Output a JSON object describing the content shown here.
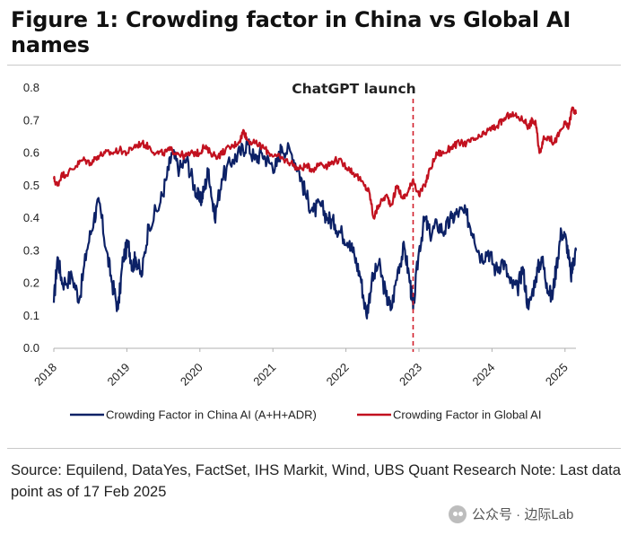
{
  "figure": {
    "title": "Figure 1: Crowding factor in China vs Global AI names"
  },
  "chart_data": {
    "type": "line",
    "title": "Figure 1: Crowding factor in China vs Global AI names",
    "xlabel": "",
    "ylabel": "",
    "xlim": [
      2018.0,
      2025.15
    ],
    "ylim": [
      0.0,
      0.8
    ],
    "y_ticks": [
      "0.0",
      "0.1",
      "0.2",
      "0.3",
      "0.4",
      "0.5",
      "0.6",
      "0.7",
      "0.8"
    ],
    "x_ticks": [
      "2018",
      "2019",
      "2020",
      "2021",
      "2022",
      "2023",
      "2024",
      "2025"
    ],
    "grid": false,
    "legend_position": "bottom",
    "annotation": {
      "label": "ChatGPT launch",
      "x": 2022.92,
      "style": "dashed",
      "color": "#d21f2b"
    },
    "series": [
      {
        "name": "Crowding Factor in China AI (A+H+ADR)",
        "color": "#0c2166",
        "points": [
          [
            2018.0,
            0.14
          ],
          [
            2018.05,
            0.28
          ],
          [
            2018.12,
            0.2
          ],
          [
            2018.25,
            0.22
          ],
          [
            2018.35,
            0.15
          ],
          [
            2018.45,
            0.3
          ],
          [
            2018.55,
            0.4
          ],
          [
            2018.62,
            0.45
          ],
          [
            2018.72,
            0.3
          ],
          [
            2018.8,
            0.2
          ],
          [
            2018.88,
            0.12
          ],
          [
            2018.95,
            0.28
          ],
          [
            2019.02,
            0.32
          ],
          [
            2019.08,
            0.25
          ],
          [
            2019.12,
            0.28
          ],
          [
            2019.2,
            0.22
          ],
          [
            2019.3,
            0.38
          ],
          [
            2019.45,
            0.44
          ],
          [
            2019.55,
            0.53
          ],
          [
            2019.62,
            0.6
          ],
          [
            2019.72,
            0.55
          ],
          [
            2019.82,
            0.58
          ],
          [
            2019.92,
            0.5
          ],
          [
            2020.0,
            0.45
          ],
          [
            2020.05,
            0.48
          ],
          [
            2020.12,
            0.55
          ],
          [
            2020.2,
            0.4
          ],
          [
            2020.3,
            0.52
          ],
          [
            2020.45,
            0.58
          ],
          [
            2020.55,
            0.6
          ],
          [
            2020.65,
            0.63
          ],
          [
            2020.75,
            0.58
          ],
          [
            2020.85,
            0.6
          ],
          [
            2020.95,
            0.57
          ],
          [
            2021.05,
            0.56
          ],
          [
            2021.12,
            0.62
          ],
          [
            2021.25,
            0.6
          ],
          [
            2021.35,
            0.55
          ],
          [
            2021.45,
            0.47
          ],
          [
            2021.55,
            0.42
          ],
          [
            2021.65,
            0.44
          ],
          [
            2021.75,
            0.4
          ],
          [
            2021.85,
            0.38
          ],
          [
            2021.95,
            0.35
          ],
          [
            2022.05,
            0.33
          ],
          [
            2022.12,
            0.28
          ],
          [
            2022.2,
            0.22
          ],
          [
            2022.28,
            0.1
          ],
          [
            2022.35,
            0.2
          ],
          [
            2022.45,
            0.26
          ],
          [
            2022.55,
            0.16
          ],
          [
            2022.62,
            0.12
          ],
          [
            2022.72,
            0.25
          ],
          [
            2022.8,
            0.31
          ],
          [
            2022.88,
            0.2
          ],
          [
            2022.92,
            0.12
          ],
          [
            2023.0,
            0.3
          ],
          [
            2023.08,
            0.4
          ],
          [
            2023.15,
            0.35
          ],
          [
            2023.25,
            0.38
          ],
          [
            2023.35,
            0.36
          ],
          [
            2023.45,
            0.4
          ],
          [
            2023.55,
            0.42
          ],
          [
            2023.65,
            0.41
          ],
          [
            2023.75,
            0.35
          ],
          [
            2023.85,
            0.28
          ],
          [
            2023.95,
            0.3
          ],
          [
            2024.05,
            0.24
          ],
          [
            2024.15,
            0.27
          ],
          [
            2024.25,
            0.2
          ],
          [
            2024.35,
            0.18
          ],
          [
            2024.42,
            0.25
          ],
          [
            2024.5,
            0.12
          ],
          [
            2024.6,
            0.22
          ],
          [
            2024.68,
            0.28
          ],
          [
            2024.75,
            0.2
          ],
          [
            2024.82,
            0.15
          ],
          [
            2024.88,
            0.25
          ],
          [
            2024.95,
            0.36
          ],
          [
            2025.02,
            0.33
          ],
          [
            2025.08,
            0.22
          ],
          [
            2025.12,
            0.27
          ],
          [
            2025.15,
            0.3
          ]
        ]
      },
      {
        "name": "Crowding Factor in Global AI",
        "color": "#c2111f",
        "points": [
          [
            2018.0,
            0.52
          ],
          [
            2018.05,
            0.5
          ],
          [
            2018.1,
            0.53
          ],
          [
            2018.2,
            0.54
          ],
          [
            2018.3,
            0.56
          ],
          [
            2018.4,
            0.58
          ],
          [
            2018.5,
            0.57
          ],
          [
            2018.6,
            0.59
          ],
          [
            2018.7,
            0.6
          ],
          [
            2018.8,
            0.6
          ],
          [
            2018.9,
            0.61
          ],
          [
            2019.0,
            0.6
          ],
          [
            2019.1,
            0.62
          ],
          [
            2019.2,
            0.63
          ],
          [
            2019.3,
            0.62
          ],
          [
            2019.4,
            0.6
          ],
          [
            2019.5,
            0.6
          ],
          [
            2019.6,
            0.61
          ],
          [
            2019.7,
            0.6
          ],
          [
            2019.8,
            0.59
          ],
          [
            2019.9,
            0.6
          ],
          [
            2020.0,
            0.6
          ],
          [
            2020.05,
            0.62
          ],
          [
            2020.15,
            0.6
          ],
          [
            2020.25,
            0.59
          ],
          [
            2020.35,
            0.61
          ],
          [
            2020.45,
            0.62
          ],
          [
            2020.55,
            0.64
          ],
          [
            2020.6,
            0.67
          ],
          [
            2020.65,
            0.64
          ],
          [
            2020.75,
            0.63
          ],
          [
            2020.85,
            0.62
          ],
          [
            2020.95,
            0.6
          ],
          [
            2021.05,
            0.59
          ],
          [
            2021.15,
            0.58
          ],
          [
            2021.25,
            0.57
          ],
          [
            2021.35,
            0.55
          ],
          [
            2021.45,
            0.56
          ],
          [
            2021.55,
            0.55
          ],
          [
            2021.65,
            0.57
          ],
          [
            2021.75,
            0.56
          ],
          [
            2021.85,
            0.58
          ],
          [
            2021.95,
            0.57
          ],
          [
            2022.05,
            0.55
          ],
          [
            2022.15,
            0.53
          ],
          [
            2022.25,
            0.5
          ],
          [
            2022.32,
            0.48
          ],
          [
            2022.38,
            0.4
          ],
          [
            2022.45,
            0.44
          ],
          [
            2022.55,
            0.47
          ],
          [
            2022.62,
            0.44
          ],
          [
            2022.7,
            0.5
          ],
          [
            2022.78,
            0.46
          ],
          [
            2022.85,
            0.48
          ],
          [
            2022.92,
            0.52
          ],
          [
            2023.0,
            0.47
          ],
          [
            2023.08,
            0.5
          ],
          [
            2023.15,
            0.55
          ],
          [
            2023.25,
            0.6
          ],
          [
            2023.35,
            0.6
          ],
          [
            2023.45,
            0.62
          ],
          [
            2023.55,
            0.63
          ],
          [
            2023.65,
            0.63
          ],
          [
            2023.75,
            0.64
          ],
          [
            2023.85,
            0.65
          ],
          [
            2023.95,
            0.67
          ],
          [
            2024.05,
            0.68
          ],
          [
            2024.15,
            0.7
          ],
          [
            2024.25,
            0.72
          ],
          [
            2024.35,
            0.71
          ],
          [
            2024.45,
            0.7
          ],
          [
            2024.5,
            0.68
          ],
          [
            2024.55,
            0.7
          ],
          [
            2024.6,
            0.69
          ],
          [
            2024.65,
            0.6
          ],
          [
            2024.7,
            0.64
          ],
          [
            2024.78,
            0.65
          ],
          [
            2024.85,
            0.63
          ],
          [
            2024.92,
            0.66
          ],
          [
            2025.0,
            0.69
          ],
          [
            2025.05,
            0.68
          ],
          [
            2025.1,
            0.74
          ],
          [
            2025.15,
            0.72
          ]
        ]
      }
    ]
  },
  "source_note": "Source:  Equilend, DataYes, FactSet, IHS Markit, Wind, UBS Quant Research Note: Last data point as of 17 Feb 2025",
  "watermark": {
    "text": "公众号 · 边际Lab",
    "icon": "wechat-icon"
  }
}
